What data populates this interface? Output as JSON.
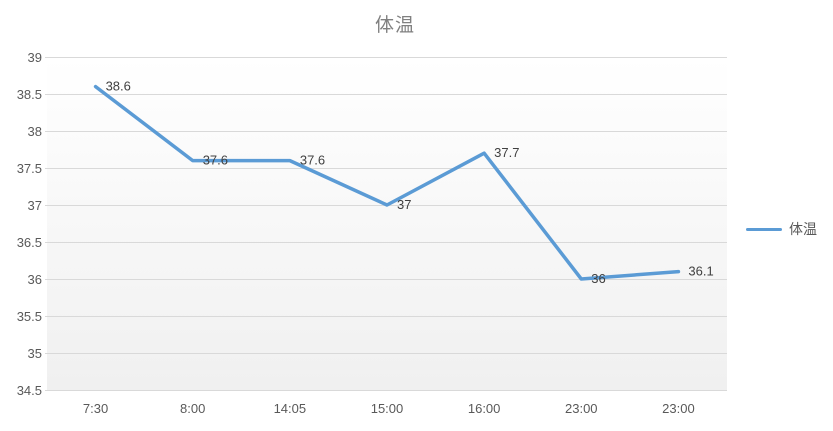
{
  "chart_data": {
    "type": "line",
    "title": "体温",
    "categories": [
      "7:30",
      "8:00",
      "14:05",
      "15:00",
      "16:00",
      "23:00",
      "23:00"
    ],
    "series": [
      {
        "name": "体温",
        "values": [
          38.6,
          37.6,
          37.6,
          37,
          37.7,
          36,
          36.1
        ]
      }
    ],
    "data_labels": [
      "38.6",
      "37.6",
      "37.6",
      "37",
      "37.7",
      "36",
      "36.1"
    ],
    "ylim": [
      34.5,
      39
    ],
    "ytick_step": 0.5,
    "ytick_labels": [
      "39",
      "38.5",
      "38",
      "37.5",
      "37",
      "36.5",
      "36",
      "35.5",
      "35",
      "34.5"
    ],
    "grid": true,
    "legend_position": "right",
    "data_label_position": "right",
    "colors": {
      "series_line": "#5B9BD5",
      "gridline": "#D9D9D9",
      "axis_text": "#595959",
      "data_label_text": "#404040",
      "title_text": "#808080",
      "plot_bg_top": "#ffffff",
      "plot_bg_bottom": "#f0f0f0"
    }
  }
}
